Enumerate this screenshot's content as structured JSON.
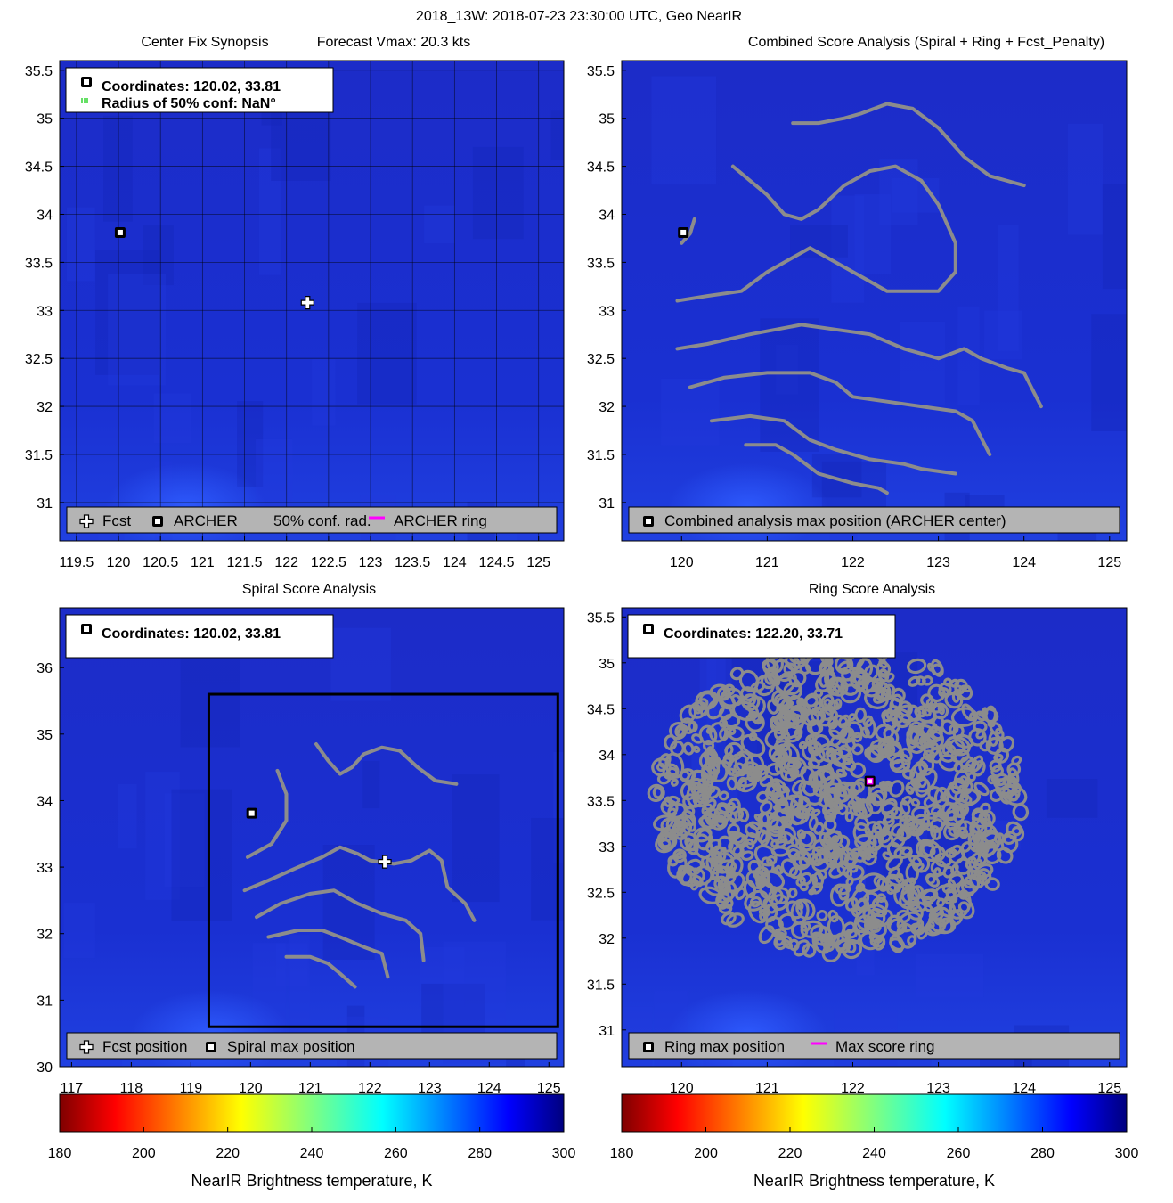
{
  "figure_title": "2018_13W: 2018-07-23 23:30:00 UTC, Geo NearIR",
  "colors": {
    "background_blue": "#1a2fd0",
    "contour_gray": "#8c8c8c",
    "legend_gray": "#b4b4b4",
    "magenta": "#ff00ff",
    "green": "#00cc00"
  },
  "chart_data": [
    {
      "id": "center_fix",
      "type": "scatter",
      "title": "Center Fix Synopsis",
      "title_right": "Forecast Vmax: 20.3 kts",
      "xlim": [
        119.3,
        125.3
      ],
      "ylim": [
        30.6,
        35.6
      ],
      "xticks": [
        119.5,
        120,
        120.5,
        121,
        121.5,
        122,
        122.5,
        123,
        123.5,
        124,
        124.5,
        125
      ],
      "xtick_labels": [
        "119.5",
        "120",
        "120.5",
        "121",
        "121.5",
        "122",
        "122.5",
        "123",
        "123.5",
        "124",
        "124.5",
        "125"
      ],
      "yticks": [
        31,
        31.5,
        32,
        32.5,
        33,
        33.5,
        34,
        34.5,
        35,
        35.5
      ],
      "ytick_labels": [
        "31",
        "31.5",
        "32",
        "32.5",
        "33",
        "33.5",
        "34",
        "34.5",
        "35",
        "35.5"
      ],
      "grid": true,
      "info_lines": [
        "Coordinates: 120.02, 33.81",
        "Radius of 50% conf: NaN°"
      ],
      "points": [
        {
          "name": "ARCHER",
          "marker": "square",
          "x": 120.02,
          "y": 33.81
        },
        {
          "name": "Fcst",
          "marker": "cross",
          "x": 122.25,
          "y": 33.08
        }
      ],
      "legend": [
        "Fcst",
        "ARCHER",
        "50% conf. rad.",
        "ARCHER ring"
      ],
      "legend_position": "bottom"
    },
    {
      "id": "combined",
      "type": "line",
      "title": "Combined Score Analysis (Spiral + Ring + Fcst_Penalty)",
      "xlim": [
        119.3,
        125.2
      ],
      "ylim": [
        30.6,
        35.6
      ],
      "xticks": [
        120,
        121,
        122,
        123,
        124,
        125
      ],
      "xtick_labels": [
        "120",
        "121",
        "122",
        "123",
        "124",
        "125"
      ],
      "yticks": [
        31,
        31.5,
        32,
        32.5,
        33,
        33.5,
        34,
        34.5,
        35,
        35.5
      ],
      "ytick_labels": [
        "31",
        "31.5",
        "32",
        "32.5",
        "33",
        "33.5",
        "34",
        "34.5",
        "35",
        "35.5"
      ],
      "points": [
        {
          "name": "ARCHER",
          "marker": "square",
          "x": 120.02,
          "y": 33.81
        }
      ],
      "contours": [
        [
          [
            120.0,
            33.7
          ],
          [
            120.1,
            33.8
          ],
          [
            120.15,
            33.95
          ]
        ],
        [
          [
            120.6,
            34.5
          ],
          [
            120.8,
            34.35
          ],
          [
            121.0,
            34.2
          ],
          [
            121.2,
            34.0
          ],
          [
            121.4,
            33.95
          ],
          [
            121.6,
            34.05
          ],
          [
            121.9,
            34.3
          ],
          [
            122.2,
            34.45
          ],
          [
            122.5,
            34.5
          ],
          [
            122.8,
            34.35
          ],
          [
            123.0,
            34.1
          ],
          [
            123.2,
            33.7
          ],
          [
            123.2,
            33.4
          ],
          [
            123.0,
            33.2
          ],
          [
            122.7,
            33.2
          ],
          [
            122.4,
            33.2
          ],
          [
            122.2,
            33.3
          ],
          [
            121.9,
            33.45
          ],
          [
            121.7,
            33.55
          ],
          [
            121.5,
            33.65
          ],
          [
            121.3,
            33.55
          ],
          [
            121.0,
            33.4
          ],
          [
            120.7,
            33.2
          ],
          [
            120.3,
            33.15
          ],
          [
            119.95,
            33.1
          ]
        ],
        [
          [
            121.3,
            34.95
          ],
          [
            121.6,
            34.95
          ],
          [
            121.9,
            35.0
          ],
          [
            122.1,
            35.05
          ],
          [
            122.4,
            35.15
          ],
          [
            122.7,
            35.1
          ],
          [
            123.0,
            34.9
          ],
          [
            123.3,
            34.6
          ],
          [
            123.6,
            34.4
          ],
          [
            124.0,
            34.3
          ]
        ],
        [
          [
            119.95,
            32.6
          ],
          [
            120.3,
            32.65
          ],
          [
            120.8,
            32.75
          ],
          [
            121.1,
            32.8
          ],
          [
            121.4,
            32.85
          ],
          [
            121.8,
            32.8
          ],
          [
            122.2,
            32.75
          ],
          [
            122.6,
            32.6
          ],
          [
            123.0,
            32.5
          ],
          [
            123.3,
            32.6
          ],
          [
            123.5,
            32.5
          ],
          [
            123.8,
            32.4
          ],
          [
            124.0,
            32.35
          ],
          [
            124.2,
            32.0
          ]
        ],
        [
          [
            120.1,
            32.2
          ],
          [
            120.5,
            32.3
          ],
          [
            121.0,
            32.35
          ],
          [
            121.5,
            32.35
          ],
          [
            121.8,
            32.25
          ],
          [
            122.0,
            32.1
          ],
          [
            122.4,
            32.05
          ],
          [
            122.8,
            32.0
          ],
          [
            123.2,
            31.95
          ],
          [
            123.4,
            31.85
          ],
          [
            123.6,
            31.5
          ]
        ],
        [
          [
            120.35,
            31.85
          ],
          [
            120.8,
            31.9
          ],
          [
            121.2,
            31.85
          ],
          [
            121.5,
            31.65
          ],
          [
            121.8,
            31.55
          ],
          [
            122.2,
            31.45
          ],
          [
            122.6,
            31.4
          ],
          [
            122.8,
            31.35
          ],
          [
            123.2,
            31.3
          ]
        ],
        [
          [
            120.75,
            31.6
          ],
          [
            121.1,
            31.6
          ],
          [
            121.3,
            31.5
          ],
          [
            121.6,
            31.3
          ],
          [
            122.0,
            31.2
          ],
          [
            122.3,
            31.15
          ],
          [
            122.4,
            31.1
          ]
        ]
      ],
      "legend": [
        "Combined analysis max position (ARCHER center)"
      ],
      "legend_position": "bottom"
    },
    {
      "id": "spiral",
      "type": "line",
      "title": "Spiral Score Analysis",
      "xlim": [
        116.8,
        125.25
      ],
      "ylim": [
        30.0,
        36.9
      ],
      "xticks": [
        117,
        118,
        119,
        120,
        121,
        122,
        123,
        124,
        125
      ],
      "xtick_labels": [
        "117",
        "118",
        "119",
        "120",
        "121",
        "122",
        "123",
        "124",
        "125"
      ],
      "yticks": [
        30,
        31,
        32,
        33,
        34,
        35,
        36
      ],
      "ytick_labels": [
        "30",
        "31",
        "32",
        "33",
        "34",
        "35",
        "36"
      ],
      "info_lines": [
        "Coordinates: 120.02, 33.81"
      ],
      "points": [
        {
          "name": "Spiral max",
          "marker": "square",
          "x": 120.02,
          "y": 33.81
        },
        {
          "name": "Fcst",
          "marker": "cross",
          "x": 122.25,
          "y": 33.08
        }
      ],
      "search_box": [
        119.3,
        30.6,
        125.15,
        35.6
      ],
      "contours": [
        [
          [
            120.45,
            34.45
          ],
          [
            120.6,
            34.1
          ],
          [
            120.6,
            33.7
          ],
          [
            120.35,
            33.35
          ],
          [
            119.95,
            33.15
          ]
        ],
        [
          [
            121.1,
            34.85
          ],
          [
            121.3,
            34.6
          ],
          [
            121.5,
            34.4
          ],
          [
            121.7,
            34.5
          ],
          [
            121.9,
            34.7
          ],
          [
            122.2,
            34.8
          ],
          [
            122.5,
            34.75
          ],
          [
            122.8,
            34.5
          ],
          [
            123.1,
            34.3
          ],
          [
            123.45,
            34.25
          ]
        ],
        [
          [
            119.9,
            32.65
          ],
          [
            120.3,
            32.8
          ],
          [
            120.8,
            33.0
          ],
          [
            121.2,
            33.15
          ],
          [
            121.5,
            33.3
          ],
          [
            121.8,
            33.2
          ],
          [
            122.0,
            33.1
          ],
          [
            122.4,
            33.05
          ],
          [
            122.7,
            33.1
          ],
          [
            123.0,
            33.25
          ],
          [
            123.2,
            33.1
          ],
          [
            123.3,
            32.7
          ],
          [
            123.6,
            32.45
          ],
          [
            123.75,
            32.2
          ]
        ],
        [
          [
            120.1,
            32.25
          ],
          [
            120.5,
            32.45
          ],
          [
            121.0,
            32.6
          ],
          [
            121.4,
            32.65
          ],
          [
            121.8,
            32.45
          ],
          [
            122.2,
            32.3
          ],
          [
            122.6,
            32.2
          ],
          [
            122.85,
            32.0
          ],
          [
            122.9,
            31.6
          ]
        ],
        [
          [
            120.3,
            31.95
          ],
          [
            120.8,
            32.05
          ],
          [
            121.2,
            32.05
          ],
          [
            121.5,
            31.95
          ],
          [
            121.9,
            31.8
          ],
          [
            122.2,
            31.7
          ],
          [
            122.3,
            31.35
          ]
        ],
        [
          [
            120.6,
            31.65
          ],
          [
            121.0,
            31.65
          ],
          [
            121.3,
            31.55
          ],
          [
            121.5,
            31.4
          ],
          [
            121.75,
            31.2
          ]
        ]
      ],
      "legend": [
        "Fcst position",
        "Spiral max position"
      ],
      "legend_position": "bottom"
    },
    {
      "id": "ring",
      "type": "scatter",
      "title": "Ring Score Analysis",
      "xlim": [
        119.3,
        125.2
      ],
      "ylim": [
        30.6,
        35.6
      ],
      "xticks": [
        120,
        121,
        122,
        123,
        124,
        125
      ],
      "xtick_labels": [
        "120",
        "121",
        "122",
        "123",
        "124",
        "125"
      ],
      "yticks": [
        31,
        31.5,
        32,
        32.5,
        33,
        33.5,
        34,
        34.5,
        35,
        35.5
      ],
      "ytick_labels": [
        "31",
        "31.5",
        "32",
        "32.5",
        "33",
        "33.5",
        "34",
        "34.5",
        "35",
        "35.5"
      ],
      "info_lines": [
        "Coordinates: 122.20, 33.71"
      ],
      "points": [
        {
          "name": "Ring max",
          "marker": "square",
          "x": 122.2,
          "y": 33.71
        }
      ],
      "ring_region": {
        "x_range": [
          119.7,
          124.0
        ],
        "y_range": [
          31.8,
          35.2
        ]
      },
      "legend": [
        "Ring max position",
        "Max score ring"
      ],
      "legend_position": "bottom"
    }
  ],
  "colorbars": [
    {
      "label": "NearIR Brightness temperature, K",
      "range": [
        180,
        300
      ],
      "ticks": [
        180,
        200,
        220,
        240,
        260,
        280,
        300
      ],
      "tick_labels": [
        "180",
        "200",
        "220",
        "240",
        "260",
        "280",
        "300"
      ],
      "colormap": "jet_reversed"
    },
    {
      "label": "NearIR Brightness temperature, K",
      "range": [
        180,
        300
      ],
      "ticks": [
        180,
        200,
        220,
        240,
        260,
        280,
        300
      ],
      "tick_labels": [
        "180",
        "200",
        "220",
        "240",
        "260",
        "280",
        "300"
      ],
      "colormap": "jet_reversed"
    }
  ]
}
